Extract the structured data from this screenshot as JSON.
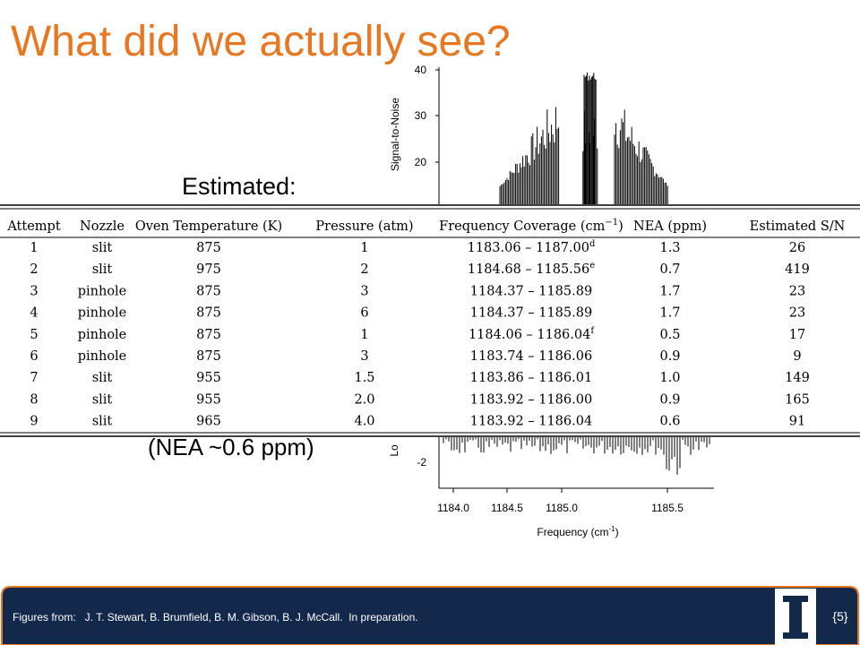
{
  "slide": {
    "title": "What did we actually see?",
    "estimated": "Estimated:",
    "nea_note": "(NEA ~0.6 ppm)",
    "plot": {
      "y_label": "Signal-to-Noise",
      "y_ticks": [
        "40",
        "30",
        "20"
      ],
      "lower_y_label": "Lo",
      "lower_y_tick": "-2",
      "x_ticks": [
        "1184.0",
        "1184.5",
        "1185.0",
        "1185.5"
      ],
      "x_label": "Frequency (cm",
      "x_label_sup": "-1",
      "x_label_end": ")"
    },
    "table": {
      "header": [
        {
          "text": "Attempt"
        },
        {
          "text": "Nozzle"
        },
        {
          "text": "Oven Temperature (K)"
        },
        {
          "text": "Pressure (atm)"
        },
        {
          "text": "Frequency Coverage (cm",
          "sup": "−1",
          "after": ")"
        },
        {
          "text": "NEA (ppm)"
        },
        {
          "text": "Estimated S/N"
        }
      ],
      "rows": [
        [
          "1",
          "slit",
          "875",
          "1",
          {
            "text": "1183.06 – 1187.00",
            "sup": "d"
          },
          "1.3",
          "26"
        ],
        [
          "2",
          "slit",
          "975",
          "2",
          {
            "text": "1184.68 – 1185.56",
            "sup": "e"
          },
          "0.7",
          "419"
        ],
        [
          "3",
          "pinhole",
          "875",
          "3",
          {
            "text": "1184.37 – 1185.89"
          },
          "1.7",
          "23"
        ],
        [
          "4",
          "pinhole",
          "875",
          "6",
          {
            "text": "1184.37 – 1185.89"
          },
          "1.7",
          "23"
        ],
        [
          "5",
          "pinhole",
          "875",
          "1",
          {
            "text": "1184.06 – 1186.04",
            "sup": "f"
          },
          "0.5",
          "17"
        ],
        [
          "6",
          "pinhole",
          "875",
          "3",
          {
            "text": "1183.74 – 1186.06"
          },
          "0.9",
          "9"
        ],
        [
          "7",
          "slit",
          "955",
          "1.5",
          {
            "text": "1183.86 – 1186.01"
          },
          "1.0",
          "149"
        ],
        [
          "8",
          "slit",
          "955",
          "2.0",
          {
            "text": "1183.92 – 1186.00"
          },
          "0.9",
          "165"
        ],
        [
          "9",
          "slit",
          "965",
          "4.0",
          {
            "text": "1183.92 – 1186.04"
          },
          "0.6",
          "91"
        ]
      ]
    },
    "footer": {
      "credit": "Figures from:   J. T. Stewart, B. Brumfield, B. M. Gibson, B. J. McCall.  In preparation.",
      "page": "{5}"
    }
  }
}
